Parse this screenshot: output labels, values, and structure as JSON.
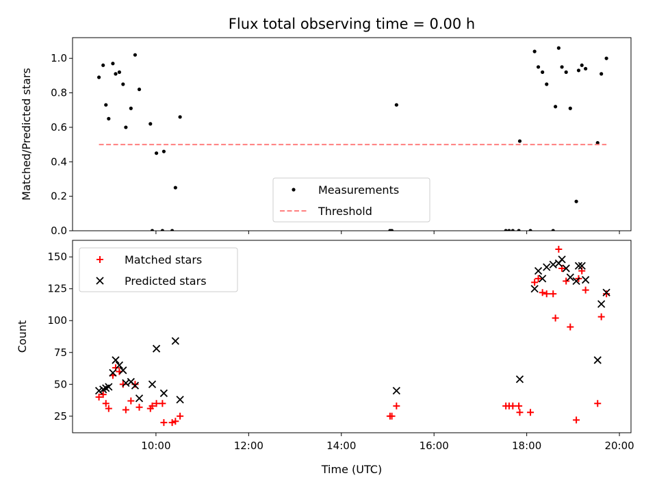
{
  "chart_data": [
    {
      "type": "scatter",
      "title": "Flux total observing time = 0.00 h",
      "xlabel": "",
      "ylabel": "Matched/Predicted stars",
      "xlim": [
        8.2,
        20.25
      ],
      "ylim": [
        0,
        1.12
      ],
      "yticks": [
        0.0,
        0.2,
        0.4,
        0.6,
        0.8,
        1.0
      ],
      "ytick_labels": [
        "0.0",
        "0.2",
        "0.4",
        "0.6",
        "0.8",
        "1.0"
      ],
      "xticks": [
        10,
        12,
        14,
        16,
        18,
        20
      ],
      "legend_position": "lower-center",
      "series": [
        {
          "name": "Measurements",
          "marker": "dot",
          "color": "#000000",
          "points": [
            [
              8.77,
              0.89
            ],
            [
              8.86,
              0.96
            ],
            [
              8.92,
              0.73
            ],
            [
              8.98,
              0.65
            ],
            [
              9.07,
              0.97
            ],
            [
              9.13,
              0.91
            ],
            [
              9.21,
              0.92
            ],
            [
              9.29,
              0.85
            ],
            [
              9.35,
              0.6
            ],
            [
              9.46,
              0.71
            ],
            [
              9.55,
              1.02
            ],
            [
              9.64,
              0.82
            ],
            [
              9.88,
              0.62
            ],
            [
              9.92,
              0.0
            ],
            [
              10.01,
              0.45
            ],
            [
              10.14,
              0.0
            ],
            [
              10.17,
              0.46
            ],
            [
              10.35,
              0.0
            ],
            [
              10.42,
              0.25
            ],
            [
              10.52,
              0.66
            ],
            [
              15.05,
              0.0
            ],
            [
              15.09,
              0.0
            ],
            [
              15.19,
              0.73
            ],
            [
              17.55,
              0.0
            ],
            [
              17.62,
              0.0
            ],
            [
              17.7,
              0.0
            ],
            [
              17.83,
              0.0
            ],
            [
              17.85,
              0.52
            ],
            [
              18.08,
              0.0
            ],
            [
              18.17,
              1.04
            ],
            [
              18.25,
              0.95
            ],
            [
              18.34,
              0.92
            ],
            [
              18.43,
              0.85
            ],
            [
              18.57,
              0.0
            ],
            [
              18.62,
              0.72
            ],
            [
              18.69,
              1.06
            ],
            [
              18.76,
              0.95
            ],
            [
              18.85,
              0.92
            ],
            [
              18.94,
              0.71
            ],
            [
              19.07,
              0.17
            ],
            [
              19.12,
              0.93
            ],
            [
              19.19,
              0.96
            ],
            [
              19.27,
              0.94
            ],
            [
              19.53,
              0.51
            ],
            [
              19.61,
              0.91
            ],
            [
              19.72,
              1.0
            ]
          ]
        },
        {
          "name": "Threshold",
          "type": "line",
          "style": "dashed",
          "color": "#ff7f7f",
          "points": [
            [
              8.77,
              0.5
            ],
            [
              19.72,
              0.5
            ]
          ]
        }
      ]
    },
    {
      "type": "scatter",
      "title": "",
      "xlabel": "Time (UTC)",
      "ylabel": "Count",
      "xlim": [
        8.2,
        20.25
      ],
      "ylim": [
        12,
        163
      ],
      "yticks": [
        25,
        50,
        75,
        100,
        125,
        150
      ],
      "ytick_labels": [
        "25",
        "50",
        "75",
        "100",
        "125",
        "150"
      ],
      "xticks": [
        10,
        12,
        14,
        16,
        18,
        20
      ],
      "xtick_labels": [
        "10:00",
        "12:00",
        "14:00",
        "16:00",
        "18:00",
        "20:00"
      ],
      "legend_position": "upper-left",
      "series": [
        {
          "name": "Matched stars",
          "marker": "plus",
          "color": "#ff0000",
          "points": [
            [
              8.77,
              40
            ],
            [
              8.86,
              42
            ],
            [
              8.92,
              35
            ],
            [
              8.98,
              31
            ],
            [
              9.07,
              57
            ],
            [
              9.13,
              63
            ],
            [
              9.21,
              60
            ],
            [
              9.29,
              50
            ],
            [
              9.35,
              30
            ],
            [
              9.46,
              37
            ],
            [
              9.55,
              50
            ],
            [
              9.64,
              32
            ],
            [
              9.88,
              31
            ],
            [
              9.92,
              33
            ],
            [
              10.01,
              35
            ],
            [
              10.14,
              35
            ],
            [
              10.17,
              20
            ],
            [
              10.35,
              20
            ],
            [
              10.42,
              21
            ],
            [
              10.52,
              25
            ],
            [
              15.05,
              25
            ],
            [
              15.09,
              25
            ],
            [
              15.19,
              33
            ],
            [
              17.55,
              33
            ],
            [
              17.62,
              33
            ],
            [
              17.7,
              33
            ],
            [
              17.83,
              33
            ],
            [
              17.85,
              28
            ],
            [
              18.08,
              28
            ],
            [
              18.17,
              130
            ],
            [
              18.25,
              133
            ],
            [
              18.34,
              122
            ],
            [
              18.43,
              121
            ],
            [
              18.57,
              121
            ],
            [
              18.62,
              102
            ],
            [
              18.69,
              156
            ],
            [
              18.76,
              141
            ],
            [
              18.85,
              131
            ],
            [
              18.94,
              95
            ],
            [
              19.07,
              22
            ],
            [
              19.12,
              133
            ],
            [
              19.19,
              139
            ],
            [
              19.27,
              124
            ],
            [
              19.53,
              35
            ],
            [
              19.61,
              103
            ],
            [
              19.72,
              121
            ]
          ]
        },
        {
          "name": "Predicted stars",
          "marker": "x",
          "color": "#000000",
          "points": [
            [
              8.77,
              45
            ],
            [
              8.86,
              46
            ],
            [
              8.92,
              47
            ],
            [
              8.98,
              48
            ],
            [
              9.07,
              59
            ],
            [
              9.13,
              69
            ],
            [
              9.21,
              65
            ],
            [
              9.29,
              61
            ],
            [
              9.35,
              51
            ],
            [
              9.46,
              52
            ],
            [
              9.55,
              49
            ],
            [
              9.64,
              39
            ],
            [
              9.92,
              50
            ],
            [
              10.01,
              78
            ],
            [
              10.17,
              43
            ],
            [
              10.42,
              84
            ],
            [
              10.52,
              38
            ],
            [
              15.19,
              45
            ],
            [
              17.85,
              54
            ],
            [
              18.17,
              125
            ],
            [
              18.25,
              139
            ],
            [
              18.34,
              133
            ],
            [
              18.43,
              142
            ],
            [
              18.57,
              144
            ],
            [
              18.69,
              145
            ],
            [
              18.76,
              148
            ],
            [
              18.85,
              141
            ],
            [
              18.94,
              134
            ],
            [
              19.07,
              131
            ],
            [
              19.12,
              143
            ],
            [
              19.19,
              143
            ],
            [
              19.27,
              132
            ],
            [
              19.53,
              69
            ],
            [
              19.61,
              113
            ],
            [
              19.72,
              122
            ]
          ]
        }
      ]
    }
  ]
}
